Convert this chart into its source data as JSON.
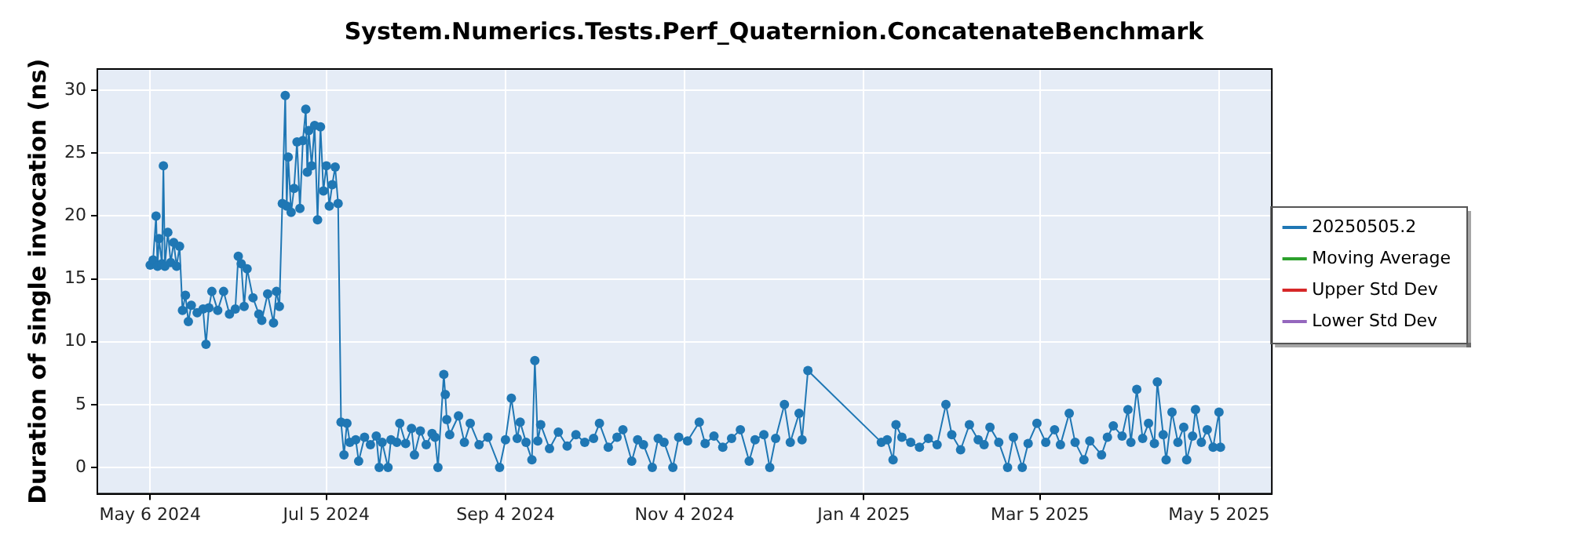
{
  "chart_data": {
    "type": "line",
    "title": "System.Numerics.Tests.Perf_Quaternion.ConcatenateBenchmark",
    "ylabel": "Duration of single invocation (ns)",
    "x": [
      "2024-05-06",
      "2024-05-07",
      "2024-05-08",
      "2024-05-08T12:00",
      "2024-05-09",
      "2024-05-10",
      "2024-05-10T12:00",
      "2024-05-11",
      "2024-05-12",
      "2024-05-13",
      "2024-05-14",
      "2024-05-15",
      "2024-05-16",
      "2024-05-17",
      "2024-05-18",
      "2024-05-19",
      "2024-05-20",
      "2024-05-22",
      "2024-05-24",
      "2024-05-25",
      "2024-05-26",
      "2024-05-27",
      "2024-05-29",
      "2024-05-31",
      "2024-06-02",
      "2024-06-04",
      "2024-06-05",
      "2024-06-06",
      "2024-06-07",
      "2024-06-08",
      "2024-06-10",
      "2024-06-12",
      "2024-06-13",
      "2024-06-15",
      "2024-06-17",
      "2024-06-18",
      "2024-06-19",
      "2024-06-20",
      "2024-06-21",
      "2024-06-21T12:00",
      "2024-06-22",
      "2024-06-23",
      "2024-06-24",
      "2024-06-25",
      "2024-06-26",
      "2024-06-27",
      "2024-06-28",
      "2024-06-28T12:00",
      "2024-06-29",
      "2024-06-30",
      "2024-07-01",
      "2024-07-02",
      "2024-07-03",
      "2024-07-04",
      "2024-07-05",
      "2024-07-06",
      "2024-07-07",
      "2024-07-08",
      "2024-07-09",
      "2024-07-10",
      "2024-07-11",
      "2024-07-12",
      "2024-07-13",
      "2024-07-15",
      "2024-07-16",
      "2024-07-18",
      "2024-07-20",
      "2024-07-22",
      "2024-07-23",
      "2024-07-24",
      "2024-07-26",
      "2024-07-27",
      "2024-07-29",
      "2024-07-30",
      "2024-08-01",
      "2024-08-03",
      "2024-08-04",
      "2024-08-06",
      "2024-08-08",
      "2024-08-10",
      "2024-08-11",
      "2024-08-12",
      "2024-08-14",
      "2024-08-14T12:00",
      "2024-08-15",
      "2024-08-16",
      "2024-08-19",
      "2024-08-21",
      "2024-08-23",
      "2024-08-26",
      "2024-08-29",
      "2024-09-02",
      "2024-09-04",
      "2024-09-06",
      "2024-09-08",
      "2024-09-09",
      "2024-09-11",
      "2024-09-13",
      "2024-09-14",
      "2024-09-15",
      "2024-09-16",
      "2024-09-19",
      "2024-09-22",
      "2024-09-25",
      "2024-09-28",
      "2024-10-01",
      "2024-10-04",
      "2024-10-06",
      "2024-10-09",
      "2024-10-12",
      "2024-10-14",
      "2024-10-17",
      "2024-10-19",
      "2024-10-21",
      "2024-10-24",
      "2024-10-26",
      "2024-10-28",
      "2024-10-31",
      "2024-11-02",
      "2024-11-05",
      "2024-11-09",
      "2024-11-11",
      "2024-11-14",
      "2024-11-17",
      "2024-11-20",
      "2024-11-23",
      "2024-11-26",
      "2024-11-28",
      "2024-12-01",
      "2024-12-03",
      "2024-12-05",
      "2024-12-08",
      "2024-12-10",
      "2024-12-13",
      "2024-12-14",
      "2024-12-16",
      "2025-01-10",
      "2025-01-12",
      "2025-01-14",
      "2025-01-15",
      "2025-01-17",
      "2025-01-20",
      "2025-01-23",
      "2025-01-26",
      "2025-01-29",
      "2025-02-01",
      "2025-02-03",
      "2025-02-06",
      "2025-02-09",
      "2025-02-12",
      "2025-02-14",
      "2025-02-16",
      "2025-02-19",
      "2025-02-22",
      "2025-02-24",
      "2025-02-27",
      "2025-03-01",
      "2025-03-04",
      "2025-03-07",
      "2025-03-10",
      "2025-03-12",
      "2025-03-15",
      "2025-03-17",
      "2025-03-20",
      "2025-03-22",
      "2025-03-26",
      "2025-03-28",
      "2025-03-30",
      "2025-04-02",
      "2025-04-04",
      "2025-04-05",
      "2025-04-07",
      "2025-04-09",
      "2025-04-11",
      "2025-04-13",
      "2025-04-14",
      "2025-04-16",
      "2025-04-17",
      "2025-04-19",
      "2025-04-21",
      "2025-04-23",
      "2025-04-24",
      "2025-04-26",
      "2025-04-27",
      "2025-04-29",
      "2025-05-01",
      "2025-05-03",
      "2025-05-05",
      "2025-05-05T12:00"
    ],
    "series": [
      {
        "name": "20250505.2",
        "color": "#1f77b4",
        "values": [
          16.1,
          16.5,
          20.0,
          16.0,
          18.2,
          16.2,
          24.0,
          16.0,
          18.7,
          16.3,
          17.9,
          16.0,
          17.6,
          12.5,
          13.7,
          11.6,
          12.9,
          12.3,
          12.6,
          9.8,
          12.7,
          14.0,
          12.5,
          14.0,
          12.2,
          12.6,
          16.8,
          16.2,
          12.8,
          15.8,
          13.5,
          12.2,
          11.7,
          13.8,
          11.5,
          14.0,
          12.8,
          21.0,
          29.6,
          20.8,
          24.7,
          20.3,
          22.2,
          25.9,
          20.6,
          26.0,
          28.5,
          23.5,
          26.8,
          24.0,
          27.2,
          19.7,
          27.1,
          22.0,
          24.0,
          20.8,
          22.5,
          23.9,
          21.0,
          3.6,
          1.0,
          3.5,
          2.0,
          2.2,
          0.5,
          2.4,
          1.8,
          2.5,
          0.0,
          2.0,
          0.0,
          2.2,
          2.0,
          3.5,
          1.9,
          3.1,
          1.0,
          2.9,
          1.8,
          2.7,
          2.4,
          0.0,
          7.4,
          5.8,
          3.8,
          2.6,
          4.1,
          2.0,
          3.5,
          1.8,
          2.4,
          0.0,
          2.2,
          5.5,
          2.3,
          3.6,
          2.0,
          0.6,
          8.5,
          2.1,
          3.4,
          1.5,
          2.8,
          1.7,
          2.6,
          2.0,
          2.3,
          3.5,
          1.6,
          2.4,
          3.0,
          0.5,
          2.2,
          1.8,
          0.0,
          2.3,
          2.0,
          0.0,
          2.4,
          2.1,
          3.6,
          1.9,
          2.5,
          1.6,
          2.3,
          3.0,
          0.5,
          2.2,
          2.6,
          0.0,
          2.3,
          5.0,
          2.0,
          4.3,
          2.2,
          7.7,
          2.0,
          2.2,
          0.6,
          3.4,
          2.4,
          2.0,
          1.6,
          2.3,
          1.8,
          5.0,
          2.6,
          1.4,
          3.4,
          2.2,
          1.8,
          3.2,
          2.0,
          0.0,
          2.4,
          0.0,
          1.9,
          3.5,
          2.0,
          3.0,
          1.8,
          4.3,
          2.0,
          0.6,
          2.1,
          1.0,
          2.4,
          3.3,
          2.5,
          4.6,
          2.0,
          6.2,
          2.3,
          3.5,
          1.9,
          6.8,
          2.6,
          0.6,
          4.4,
          2.0,
          3.2,
          0.6,
          2.5,
          4.6,
          2.0,
          3.0,
          1.6,
          4.4,
          1.6
        ]
      },
      {
        "name": "Moving Average",
        "color": "#2ca02c",
        "values": [
          null,
          null,
          null,
          null,
          null,
          null,
          null,
          null,
          null,
          null,
          null,
          null,
          null,
          null,
          null,
          null,
          null,
          null,
          null,
          null,
          null,
          null,
          null,
          null,
          null,
          null,
          null,
          null,
          null,
          null,
          null,
          null,
          null,
          null,
          null,
          null,
          null,
          null,
          null,
          null,
          null,
          null,
          null,
          null,
          null,
          null,
          null,
          null,
          null,
          null,
          null,
          null,
          null,
          null,
          null,
          null,
          null,
          null,
          null,
          null,
          null,
          null,
          null,
          null,
          null,
          null,
          null,
          null,
          null,
          null,
          null,
          null,
          null,
          null,
          null,
          null,
          null,
          null,
          null,
          null,
          null,
          null,
          null,
          null,
          null,
          null,
          null,
          null,
          null,
          null,
          null,
          null,
          null,
          null,
          null,
          null,
          null,
          null,
          null,
          null,
          null,
          null,
          null,
          null,
          null,
          null,
          null,
          null,
          null,
          null,
          null,
          null,
          null,
          null,
          null,
          null,
          null,
          null,
          null,
          null,
          null,
          null,
          null,
          null,
          null,
          null,
          null,
          null,
          null,
          null,
          null,
          null,
          null,
          null,
          null,
          null,
          null,
          null,
          null,
          null,
          null,
          null,
          null,
          null,
          null,
          null,
          null,
          null,
          null,
          null,
          null,
          null,
          null,
          null,
          null,
          null,
          null,
          null,
          null,
          null,
          null,
          null,
          null,
          null,
          null,
          null,
          null,
          null,
          null,
          null,
          null,
          null,
          null,
          null,
          null,
          null,
          null,
          null,
          null,
          null,
          null,
          null,
          null,
          null,
          null,
          null,
          null,
          null,
          null
        ]
      },
      {
        "name": "Upper Std Dev",
        "color": "#d62728",
        "values": [
          null,
          null,
          null,
          null,
          null,
          null,
          null,
          null,
          null,
          null,
          null,
          null,
          null,
          null,
          null,
          null,
          null,
          null,
          null,
          null,
          null,
          null,
          null,
          null,
          null,
          null,
          null,
          null,
          null,
          null,
          null,
          null,
          null,
          null,
          null,
          null,
          null,
          null,
          null,
          null,
          null,
          null,
          null,
          null,
          null,
          null,
          null,
          null,
          null,
          null,
          null,
          null,
          null,
          null,
          null,
          null,
          null,
          null,
          null,
          null,
          null,
          null,
          null,
          null,
          null,
          null,
          null,
          null,
          null,
          null,
          null,
          null,
          null,
          null,
          null,
          null,
          null,
          null,
          null,
          null,
          null,
          null,
          null,
          null,
          null,
          null,
          null,
          null,
          null,
          null,
          null,
          null,
          null,
          null,
          null,
          null,
          null,
          null,
          null,
          null,
          null,
          null,
          null,
          null,
          null,
          null,
          null,
          null,
          null,
          null,
          null,
          null,
          null,
          null,
          null,
          null,
          null,
          null,
          null,
          null,
          null,
          null,
          null,
          null,
          null,
          null,
          null,
          null,
          null,
          null,
          null,
          null,
          null,
          null,
          null,
          null,
          null,
          null,
          null,
          null,
          null,
          null,
          null,
          null,
          null,
          null,
          null,
          null,
          null,
          null,
          null,
          null,
          null,
          null,
          null,
          null,
          null,
          null,
          null,
          null,
          null,
          null,
          null,
          null,
          null,
          null,
          null,
          null,
          null,
          null,
          null,
          null,
          null,
          null,
          null,
          null,
          null,
          null,
          null,
          null,
          null,
          null,
          null,
          null,
          null,
          null,
          null,
          null,
          null
        ]
      },
      {
        "name": "Lower Std Dev",
        "color": "#9467bd",
        "values": [
          null,
          null,
          null,
          null,
          null,
          null,
          null,
          null,
          null,
          null,
          null,
          null,
          null,
          null,
          null,
          null,
          null,
          null,
          null,
          null,
          null,
          null,
          null,
          null,
          null,
          null,
          null,
          null,
          null,
          null,
          null,
          null,
          null,
          null,
          null,
          null,
          null,
          null,
          null,
          null,
          null,
          null,
          null,
          null,
          null,
          null,
          null,
          null,
          null,
          null,
          null,
          null,
          null,
          null,
          null,
          null,
          null,
          null,
          null,
          null,
          null,
          null,
          null,
          null,
          null,
          null,
          null,
          null,
          null,
          null,
          null,
          null,
          null,
          null,
          null,
          null,
          null,
          null,
          null,
          null,
          null,
          null,
          null,
          null,
          null,
          null,
          null,
          null,
          null,
          null,
          null,
          null,
          null,
          null,
          null,
          null,
          null,
          null,
          null,
          null,
          null,
          null,
          null,
          null,
          null,
          null,
          null,
          null,
          null,
          null,
          null,
          null,
          null,
          null,
          null,
          null,
          null,
          null,
          null,
          null,
          null,
          null,
          null,
          null,
          null,
          null,
          null,
          null,
          null,
          null,
          null,
          null,
          null,
          null,
          null,
          null,
          null,
          null,
          null,
          null,
          null,
          null,
          null,
          null,
          null,
          null,
          null,
          null,
          null,
          null,
          null,
          null,
          null,
          null,
          null,
          null,
          null,
          null,
          null,
          null,
          null,
          null,
          null,
          null,
          null,
          null,
          null,
          null,
          null,
          null,
          null,
          null,
          null,
          null,
          null,
          null,
          null,
          null,
          null,
          null,
          null,
          null,
          null,
          null,
          null,
          null,
          null,
          null,
          null
        ]
      }
    ],
    "xlim": [
      "2024-04-18",
      "2025-05-23"
    ],
    "xticks": [
      {
        "value": "2024-05-06",
        "label": "May 6 2024"
      },
      {
        "value": "2024-07-05",
        "label": "Jul 5 2024"
      },
      {
        "value": "2024-09-04",
        "label": "Sep 4 2024"
      },
      {
        "value": "2024-11-04",
        "label": "Nov 4 2024"
      },
      {
        "value": "2025-01-04",
        "label": "Jan 4 2025"
      },
      {
        "value": "2025-03-05",
        "label": "Mar 5 2025"
      },
      {
        "value": "2025-05-05",
        "label": "May 5 2025"
      }
    ],
    "ylim": [
      -2.1,
      31.7
    ],
    "yticks": [
      0,
      5,
      10,
      15,
      20,
      25,
      30
    ],
    "grid": true,
    "legend": "right",
    "marker": "circle",
    "line_style": "solid"
  }
}
